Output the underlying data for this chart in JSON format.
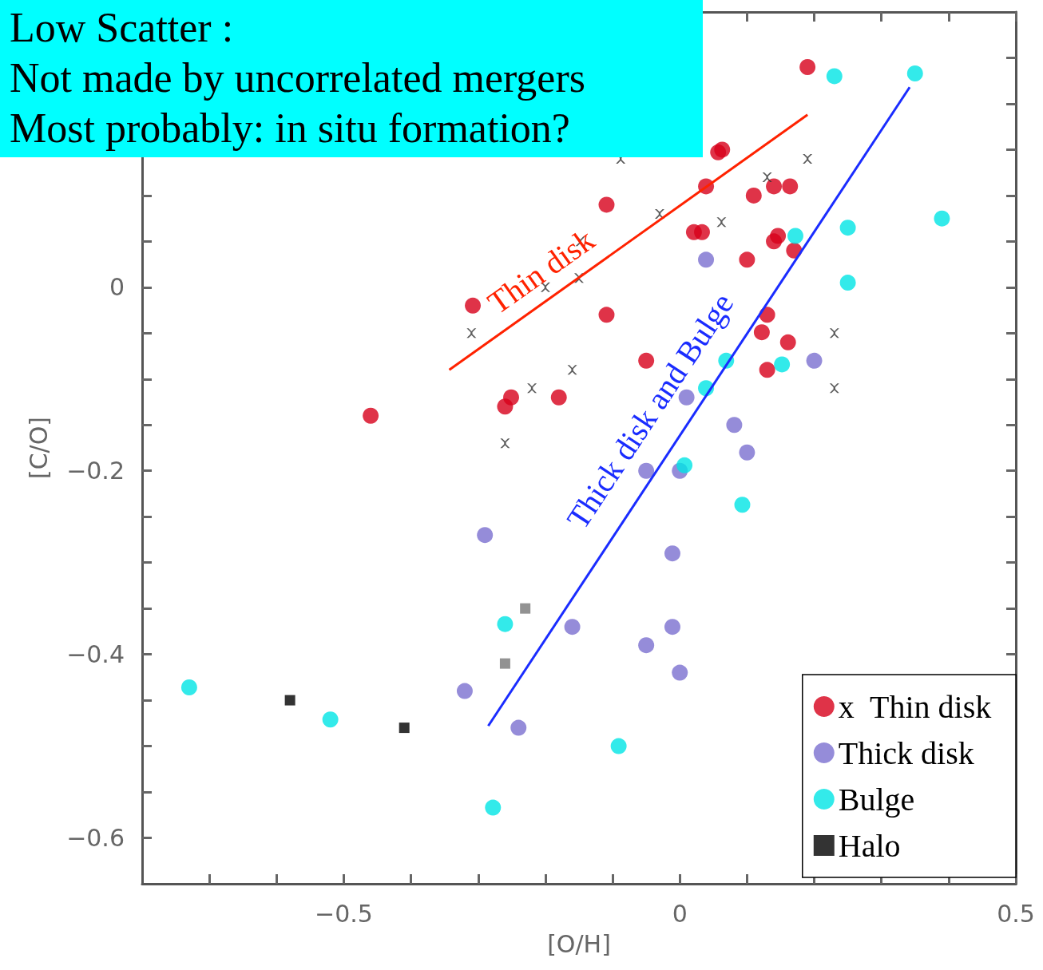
{
  "chart_data": {
    "type": "scatter",
    "xlabel": "[O/H]",
    "ylabel": "[C/O]",
    "xlim": [
      -0.8,
      0.5
    ],
    "ylim": [
      -0.65,
      0.3
    ],
    "xticks": [
      {
        "value": -0.7,
        "label": null
      },
      {
        "value": -0.6,
        "label": null
      },
      -0.5,
      {
        "value": -0.4,
        "label": null
      },
      {
        "value": -0.3,
        "label": null
      },
      {
        "value": -0.2,
        "label": null
      },
      {
        "value": -0.1,
        "label": null
      },
      0,
      {
        "value": 0.1,
        "label": null
      },
      {
        "value": 0.2,
        "label": null
      },
      {
        "value": 0.3,
        "label": null
      },
      {
        "value": 0.4,
        "label": null
      },
      0.5
    ],
    "yticks": [
      -0.6,
      {
        "value": -0.55,
        "label": null
      },
      {
        "value": -0.5,
        "label": null
      },
      {
        "value": -0.45,
        "label": null
      },
      -0.4,
      {
        "value": -0.35,
        "label": null
      },
      {
        "value": -0.3,
        "label": null
      },
      {
        "value": -0.25,
        "label": null
      },
      -0.2,
      {
        "value": -0.15,
        "label": null
      },
      {
        "value": -0.1,
        "label": null
      },
      {
        "value": -0.05,
        "label": null
      },
      0,
      {
        "value": 0.05,
        "label": null
      },
      {
        "value": 0.1,
        "label": null
      },
      {
        "value": 0.15,
        "label": null
      },
      {
        "value": 0.2,
        "label": null
      },
      {
        "value": 0.25,
        "label": null
      }
    ],
    "grid": false,
    "legend": "bottom right",
    "annotations": [
      "Low Scatter :",
      "Not made by uncorrelated mergers",
      "Most probably: in situ formation?"
    ],
    "series": [
      {
        "name": "x  Thin disk",
        "marker": "circle",
        "color": "#d7001a",
        "x": [
          0.19,
          0.057,
          0.063,
          0.039,
          -0.109,
          0.11,
          0.14,
          0.164,
          0.021,
          0.033,
          0.146,
          0.14,
          0.17,
          0.1,
          -0.308,
          -0.109,
          0.13,
          0.122,
          0.161,
          0.13,
          -0.05,
          -0.18,
          -0.251,
          -0.26,
          -0.46
        ],
        "values": [
          0.24,
          0.147,
          0.15,
          0.11,
          0.09,
          0.1,
          0.11,
          0.11,
          0.06,
          0.06,
          0.056,
          0.05,
          0.04,
          0.03,
          -0.02,
          -0.03,
          -0.03,
          -0.049,
          -0.06,
          -0.09,
          -0.08,
          -0.12,
          -0.12,
          -0.13,
          -0.14
        ]
      },
      {
        "marker": "cross",
        "color": "#333333",
        "x": [
          -0.088,
          0.19,
          0.13,
          -0.03,
          0.062,
          -0.148,
          -0.15,
          -0.2,
          -0.31,
          -0.16,
          -0.22,
          -0.26,
          0.23,
          0.23
        ],
        "values": [
          0.14,
          0.14,
          0.12,
          0.08,
          0.071,
          0.05,
          0.01,
          0.0,
          -0.05,
          -0.09,
          -0.11,
          -0.17,
          -0.05,
          -0.11
        ]
      },
      {
        "name": "Thick disk",
        "marker": "circle",
        "color": "#7b6fd0",
        "x": [
          0.039,
          0.2,
          0.01,
          0.081,
          0.1,
          -0.05,
          0.0,
          -0.29,
          -0.011,
          -0.16,
          -0.011,
          -0.05,
          0.0,
          -0.32,
          -0.24
        ],
        "values": [
          0.03,
          -0.08,
          -0.12,
          -0.15,
          -0.18,
          -0.2,
          -0.2,
          -0.27,
          -0.29,
          -0.37,
          -0.37,
          -0.39,
          -0.42,
          -0.44,
          -0.48
        ]
      },
      {
        "name": "Bulge",
        "marker": "circle",
        "color": "#00e5e5",
        "x": [
          0.23,
          0.35,
          0.39,
          0.25,
          0.172,
          0.25,
          0.152,
          0.069,
          0.039,
          0.007,
          0.093,
          -0.26,
          -0.73,
          -0.52,
          -0.091,
          -0.278
        ],
        "values": [
          0.23,
          0.233,
          0.075,
          0.065,
          0.056,
          0.005,
          -0.084,
          -0.08,
          -0.11,
          -0.194,
          -0.237,
          -0.367,
          -0.436,
          -0.471,
          -0.5,
          -0.567
        ]
      },
      {
        "name": "Halo",
        "marker": "square",
        "color": "#000000",
        "x": [
          -0.58,
          -0.41
        ],
        "values": [
          -0.45,
          -0.48
        ]
      },
      {
        "marker": "square",
        "color": "#777777",
        "x": [
          -0.23,
          -0.26
        ],
        "values": [
          -0.35,
          -0.41
        ]
      },
      {
        "name": "Thin disk",
        "type": "line",
        "marker": "none",
        "color": "#ff2200",
        "line_style": "solid",
        "x": [
          -0.343,
          0.19
        ],
        "values": [
          -0.09,
          0.188
        ]
      },
      {
        "name": "Thick disk and Bulge",
        "type": "line",
        "marker": "none",
        "color": "#1a2cff",
        "line_style": "solid",
        "x": [
          -0.285,
          0.342
        ],
        "values": [
          -0.478,
          0.218
        ]
      }
    ]
  }
}
